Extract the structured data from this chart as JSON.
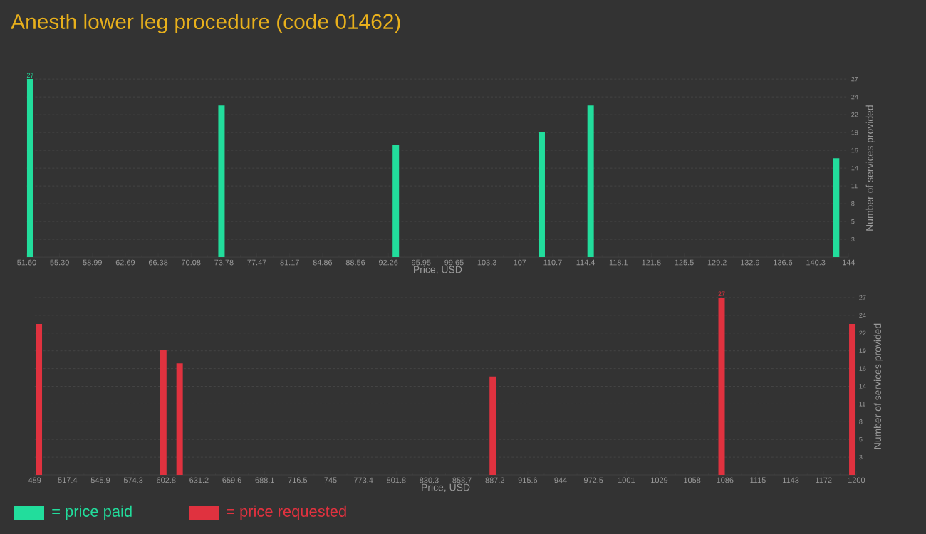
{
  "chart_data": [
    {
      "type": "bar",
      "title": "Anesth lower leg procedure (code 01462)",
      "xlabel": "Price, USD",
      "ylabel": "Number of services provided",
      "x": [
        52.0,
        73.5,
        93.1,
        109.5,
        115.0,
        142.6
      ],
      "series": [
        {
          "name": "= price paid",
          "color": "#22dd9c",
          "values": [
            27,
            23,
            17,
            19,
            23,
            15
          ],
          "value_labels": [
            "27",
            null,
            null,
            null,
            null,
            null
          ]
        }
      ],
      "xlim": [
        51.6,
        144
      ],
      "xticks": [
        {
          "value": 51.6,
          "label": "51.60"
        },
        {
          "value": 55.296,
          "label": "55.30"
        },
        {
          "value": 58.992,
          "label": "58.99"
        },
        {
          "value": 62.688,
          "label": "62.69"
        },
        {
          "value": 66.384,
          "label": "66.38"
        },
        {
          "value": 70.08,
          "label": "70.08"
        },
        {
          "value": 73.776,
          "label": "73.78"
        },
        {
          "value": 77.472,
          "label": "77.47"
        },
        {
          "value": 81.168,
          "label": "81.17"
        },
        {
          "value": 84.864,
          "label": "84.86"
        },
        {
          "value": 88.56,
          "label": "88.56"
        },
        {
          "value": 92.256,
          "label": "92.26"
        },
        {
          "value": 95.952,
          "label": "95.95"
        },
        {
          "value": 99.648,
          "label": "99.65"
        },
        {
          "value": 103.344,
          "label": "103.3"
        },
        {
          "value": 107.04,
          "label": "107"
        },
        {
          "value": 110.736,
          "label": "110.7"
        },
        {
          "value": 114.432,
          "label": "114.4"
        },
        {
          "value": 118.128,
          "label": "118.1"
        },
        {
          "value": 121.824,
          "label": "121.8"
        },
        {
          "value": 125.52,
          "label": "125.5"
        },
        {
          "value": 129.216,
          "label": "129.2"
        },
        {
          "value": 132.912,
          "label": "132.9"
        },
        {
          "value": 136.608,
          "label": "136.6"
        },
        {
          "value": 140.304,
          "label": "140.3"
        },
        {
          "value": 144,
          "label": "144"
        }
      ],
      "ylim": [
        0,
        27
      ],
      "yticks": [
        {
          "value": 2.7,
          "label": "3"
        },
        {
          "value": 5.4,
          "label": "5"
        },
        {
          "value": 8.1,
          "label": "8"
        },
        {
          "value": 10.8,
          "label": "11"
        },
        {
          "value": 13.5,
          "label": "14"
        },
        {
          "value": 16.2,
          "label": "16"
        },
        {
          "value": 18.9,
          "label": "19"
        },
        {
          "value": 21.6,
          "label": "22"
        },
        {
          "value": 24.3,
          "label": "24"
        },
        {
          "value": 27,
          "label": "27"
        }
      ],
      "grid": "y",
      "legend": "bottom"
    },
    {
      "type": "bar",
      "xlabel": "Price, USD",
      "ylabel": "Number of services provided",
      "x": [
        492.6,
        600.3,
        614.4,
        885.3,
        1083.3,
        1196.4
      ],
      "series": [
        {
          "name": "= price requested",
          "color": "#e0323f",
          "values": [
            23,
            19,
            17,
            15,
            27,
            23
          ],
          "value_labels": [
            null,
            null,
            null,
            null,
            "27",
            null
          ]
        }
      ],
      "xlim": [
        489,
        1200
      ],
      "xticks": [
        489,
        {
          "value": 517.44,
          "label": "517.4"
        },
        {
          "value": 545.88,
          "label": "545.9"
        },
        {
          "value": 574.32,
          "label": "574.3"
        },
        {
          "value": 602.76,
          "label": "602.8"
        },
        {
          "value": 631.2,
          "label": "631.2"
        },
        {
          "value": 659.64,
          "label": "659.6"
        },
        {
          "value": 688.08,
          "label": "688.1"
        },
        {
          "value": 716.52,
          "label": "716.5"
        },
        {
          "value": 744.96,
          "label": "745"
        },
        {
          "value": 773.4,
          "label": "773.4"
        },
        {
          "value": 801.84,
          "label": "801.8"
        },
        {
          "value": 830.28,
          "label": "830.3"
        },
        {
          "value": 858.72,
          "label": "858.7"
        },
        {
          "value": 887.16,
          "label": "887.2"
        },
        {
          "value": 915.6,
          "label": "915.6"
        },
        {
          "value": 944.04,
          "label": "944"
        },
        {
          "value": 972.48,
          "label": "972.5"
        },
        {
          "value": 1000.92,
          "label": "1001"
        },
        {
          "value": 1029.36,
          "label": "1029"
        },
        {
          "value": 1057.8,
          "label": "1058"
        },
        {
          "value": 1086.24,
          "label": "1086"
        },
        {
          "value": 1114.68,
          "label": "1115"
        },
        {
          "value": 1143.12,
          "label": "1143"
        },
        {
          "value": 1171.56,
          "label": "1172"
        },
        1200
      ],
      "ylim": [
        0,
        27
      ],
      "yticks": [
        {
          "value": 2.7,
          "label": "3"
        },
        {
          "value": 5.4,
          "label": "5"
        },
        {
          "value": 8.1,
          "label": "8"
        },
        {
          "value": 10.8,
          "label": "11"
        },
        {
          "value": 13.5,
          "label": "14"
        },
        {
          "value": 16.2,
          "label": "16"
        },
        {
          "value": 18.9,
          "label": "19"
        },
        {
          "value": 21.6,
          "label": "22"
        },
        {
          "value": 24.3,
          "label": "24"
        },
        {
          "value": 27,
          "label": "27"
        }
      ],
      "grid": "y",
      "legend": "bottom"
    }
  ]
}
